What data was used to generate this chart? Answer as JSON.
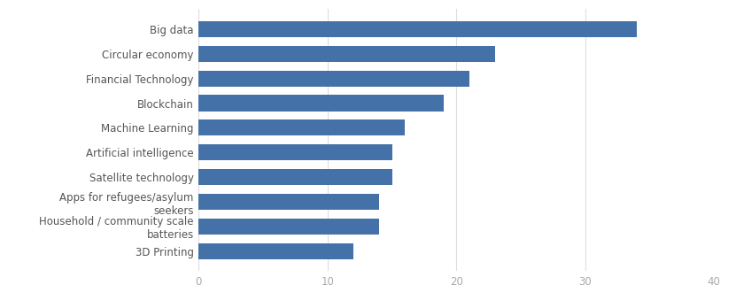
{
  "categories": [
    "3D Printing",
    "Household / community scale\nbatteries",
    "Apps for refugees/asylum\nseekers",
    "Satellite technology",
    "Artificial intelligence",
    "Machine Learning",
    "Blockchain",
    "Financial Technology",
    "Circular economy",
    "Big data"
  ],
  "values": [
    12,
    14,
    14,
    15,
    15,
    16,
    19,
    21,
    23,
    34
  ],
  "bar_color": "#4472a8",
  "background_color": "#ffffff",
  "xlim": [
    0,
    40
  ],
  "xticks": [
    0,
    10,
    20,
    30,
    40
  ],
  "bar_height": 0.65,
  "grid_color": "#dddddd",
  "tick_color": "#aaaaaa",
  "label_color": "#555555",
  "label_fontsize": 8.5,
  "tick_fontsize": 8.5
}
